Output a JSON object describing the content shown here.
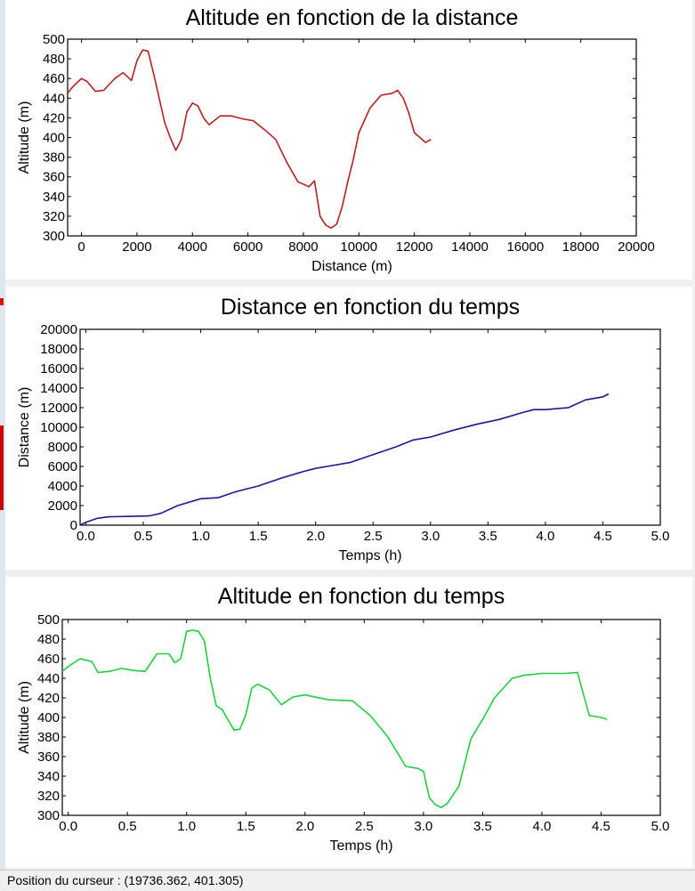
{
  "chart_data": [
    {
      "type": "line",
      "title": "Altitude en fonction de la distance",
      "xlabel": "Distance (m)",
      "ylabel": "Altitude (m)",
      "xlim": [
        -500,
        20000
      ],
      "ylim": [
        300,
        500
      ],
      "xticks": [
        0,
        2000,
        4000,
        6000,
        8000,
        10000,
        12000,
        14000,
        16000,
        18000,
        20000
      ],
      "yticks": [
        300,
        320,
        340,
        360,
        380,
        400,
        420,
        440,
        460,
        480,
        500
      ],
      "color": "#b22222",
      "series": [
        {
          "x": [
            -500,
            -300,
            0,
            200,
            500,
            800,
            1200,
            1500,
            1800,
            2000,
            2200,
            2400,
            2600,
            2800,
            3000,
            3200,
            3400,
            3600,
            3800,
            4000,
            4200,
            4400,
            4600,
            5000,
            5400,
            5800,
            6200,
            6600,
            7000,
            7400,
            7800,
            8200,
            8400,
            8600,
            8800,
            9000,
            9200,
            9400,
            9600,
            9800,
            10000,
            10400,
            10800,
            11200,
            11400,
            11600,
            11800,
            12000,
            12200,
            12400,
            12600
          ],
          "y": [
            445,
            452,
            460,
            457,
            447,
            448,
            460,
            466,
            458,
            478,
            489,
            488,
            465,
            440,
            415,
            400,
            387,
            398,
            426,
            435,
            432,
            420,
            413,
            422,
            422,
            419,
            417,
            408,
            398,
            375,
            355,
            350,
            356,
            320,
            311,
            308,
            312,
            330,
            355,
            378,
            405,
            430,
            443,
            445,
            448,
            440,
            425,
            405,
            400,
            395,
            398
          ]
        }
      ]
    },
    {
      "type": "line",
      "title": "Distance en fonction du temps",
      "xlabel": "Temps (h)",
      "ylabel": "Distance (m)",
      "xlim": [
        -0.05,
        5.0
      ],
      "ylim": [
        0,
        20000
      ],
      "xticks": [
        "0.0",
        "0.5",
        "1.0",
        "1.5",
        "2.0",
        "2.5",
        "3.0",
        "3.5",
        "4.0",
        "4.5",
        "5.0"
      ],
      "yticks": [
        0,
        2000,
        4000,
        6000,
        8000,
        10000,
        12000,
        14000,
        16000,
        18000,
        20000
      ],
      "color": "#1a1a8c",
      "series": [
        {
          "x": [
            -0.05,
            0.0,
            0.1,
            0.2,
            0.4,
            0.55,
            0.65,
            0.8,
            1.0,
            1.15,
            1.3,
            1.5,
            1.7,
            1.9,
            2.0,
            2.1,
            2.3,
            2.5,
            2.7,
            2.85,
            3.0,
            3.2,
            3.4,
            3.6,
            3.8,
            3.9,
            4.0,
            4.2,
            4.35,
            4.5,
            4.55
          ],
          "y": [
            0,
            300,
            700,
            850,
            900,
            950,
            1200,
            2000,
            2700,
            2800,
            3400,
            4000,
            4800,
            5500,
            5800,
            6000,
            6400,
            7200,
            8000,
            8700,
            9000,
            9700,
            10300,
            10800,
            11500,
            11800,
            11800,
            12000,
            12800,
            13100,
            13400
          ]
        }
      ]
    },
    {
      "type": "line",
      "title": "Altitude en fonction du temps",
      "xlabel": "Temps (h)",
      "ylabel": "Altitude (m)",
      "xlim": [
        -0.05,
        5.0
      ],
      "ylim": [
        300,
        500
      ],
      "xticks": [
        "0.0",
        "0.5",
        "1.0",
        "1.5",
        "2.0",
        "2.5",
        "3.0",
        "3.5",
        "4.0",
        "4.5",
        "5.0"
      ],
      "yticks": [
        300,
        320,
        340,
        360,
        380,
        400,
        420,
        440,
        460,
        480,
        500
      ],
      "color": "#22cc44",
      "series": [
        {
          "x": [
            -0.05,
            0.0,
            0.1,
            0.2,
            0.25,
            0.35,
            0.45,
            0.55,
            0.65,
            0.75,
            0.85,
            0.9,
            0.95,
            1.0,
            1.05,
            1.1,
            1.15,
            1.2,
            1.25,
            1.3,
            1.4,
            1.45,
            1.5,
            1.55,
            1.6,
            1.7,
            1.8,
            1.9,
            2.0,
            2.2,
            2.4,
            2.55,
            2.7,
            2.85,
            2.95,
            3.0,
            3.05,
            3.1,
            3.15,
            3.2,
            3.3,
            3.4,
            3.5,
            3.6,
            3.75,
            3.85,
            4.0,
            4.2,
            4.3,
            4.4,
            4.5,
            4.55
          ],
          "y": [
            447,
            452,
            460,
            457,
            446,
            447,
            450,
            448,
            447,
            465,
            465,
            456,
            460,
            488,
            489,
            488,
            478,
            440,
            412,
            408,
            387,
            388,
            403,
            430,
            434,
            428,
            413,
            421,
            423,
            418,
            417,
            402,
            380,
            350,
            348,
            345,
            318,
            311,
            308,
            312,
            330,
            378,
            398,
            420,
            440,
            443,
            445,
            445,
            446,
            402,
            400,
            398
          ]
        }
      ]
    }
  ],
  "statusbar": {
    "text": "Position du curseur : (19736.362, 401.305)"
  }
}
